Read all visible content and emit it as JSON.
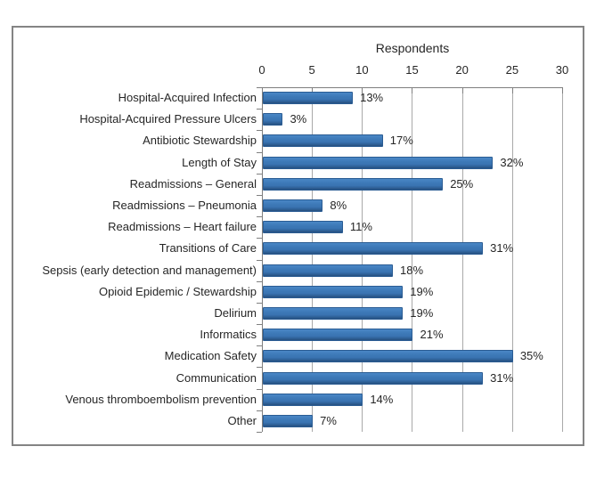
{
  "chart_data": {
    "type": "bar",
    "orientation": "horizontal",
    "title": "Respondents",
    "xlabel": "Respondents",
    "ylabel": "",
    "xlim": [
      0,
      30
    ],
    "xticks": [
      0,
      5,
      10,
      15,
      20,
      25,
      30
    ],
    "grid": true,
    "bar_color": "#3a74b2",
    "bar_border_color": "#2a5c93",
    "categories": [
      "Hospital-Acquired Infection",
      "Hospital-Acquired Pressure Ulcers",
      "Antibiotic Stewardship",
      "Length of Stay",
      "Readmissions – General",
      "Readmissions – Pneumonia",
      "Readmissions – Heart failure",
      "Transitions of Care",
      "Sepsis (early detection and management)",
      "Opioid Epidemic / Stewardship",
      "Delirium",
      "Informatics",
      "Medication Safety",
      "Communication",
      "Venous thromboembolism prevention",
      "Other"
    ],
    "values": [
      9,
      2,
      12,
      23,
      18,
      6,
      8,
      22,
      13,
      14,
      14,
      15,
      25,
      22,
      10,
      5
    ],
    "data_labels": [
      "13%",
      "3%",
      "17%",
      "32%",
      "25%",
      "8%",
      "11%",
      "31%",
      "18%",
      "19%",
      "19%",
      "21%",
      "35%",
      "31%",
      "14%",
      "7%"
    ]
  }
}
